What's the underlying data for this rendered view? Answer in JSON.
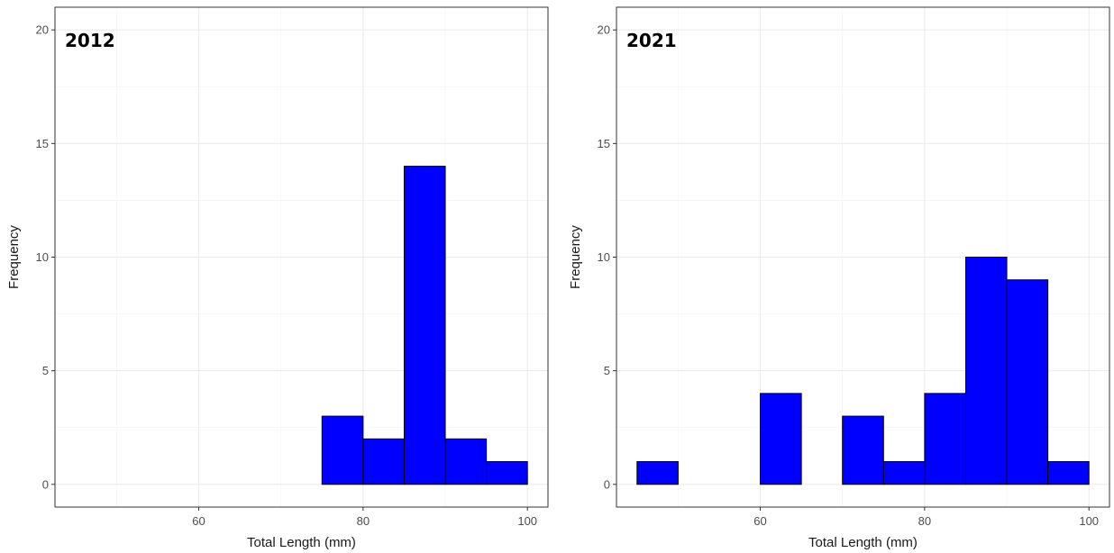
{
  "chart_data": [
    {
      "type": "bar",
      "title": "2012",
      "xlabel": "Total Length (mm)",
      "ylabel": "Frequency",
      "bin_width": 5,
      "bins": [
        {
          "x0": 45,
          "x1": 50,
          "count": 0
        },
        {
          "x0": 50,
          "x1": 55,
          "count": 0
        },
        {
          "x0": 55,
          "x1": 60,
          "count": 0
        },
        {
          "x0": 60,
          "x1": 65,
          "count": 0
        },
        {
          "x0": 65,
          "x1": 70,
          "count": 0
        },
        {
          "x0": 70,
          "x1": 75,
          "count": 0
        },
        {
          "x0": 75,
          "x1": 80,
          "count": 3
        },
        {
          "x0": 80,
          "x1": 85,
          "count": 2
        },
        {
          "x0": 85,
          "x1": 90,
          "count": 14
        },
        {
          "x0": 90,
          "x1": 95,
          "count": 2
        },
        {
          "x0": 95,
          "x1": 100,
          "count": 1
        }
      ],
      "xlim": [
        42.5,
        102.5
      ],
      "ylim": [
        -1,
        21
      ],
      "xticks": [
        60,
        80,
        100
      ],
      "yticks": [
        0,
        5,
        10,
        15,
        20
      ],
      "bar_color": "#0000ff",
      "grid": true
    },
    {
      "type": "bar",
      "title": "2021",
      "xlabel": "Total Length (mm)",
      "ylabel": "Frequency",
      "bin_width": 5,
      "bins": [
        {
          "x0": 45,
          "x1": 50,
          "count": 1
        },
        {
          "x0": 50,
          "x1": 55,
          "count": 0
        },
        {
          "x0": 55,
          "x1": 60,
          "count": 0
        },
        {
          "x0": 60,
          "x1": 65,
          "count": 4
        },
        {
          "x0": 65,
          "x1": 70,
          "count": 0
        },
        {
          "x0": 70,
          "x1": 75,
          "count": 3
        },
        {
          "x0": 75,
          "x1": 80,
          "count": 1
        },
        {
          "x0": 80,
          "x1": 85,
          "count": 4
        },
        {
          "x0": 85,
          "x1": 90,
          "count": 10
        },
        {
          "x0": 90,
          "x1": 95,
          "count": 9
        },
        {
          "x0": 95,
          "x1": 100,
          "count": 1
        }
      ],
      "xlim": [
        42.5,
        102.5
      ],
      "ylim": [
        -1,
        21
      ],
      "xticks": [
        60,
        80,
        100
      ],
      "yticks": [
        0,
        5,
        10,
        15,
        20
      ],
      "bar_color": "#0000ff",
      "grid": true
    }
  ]
}
